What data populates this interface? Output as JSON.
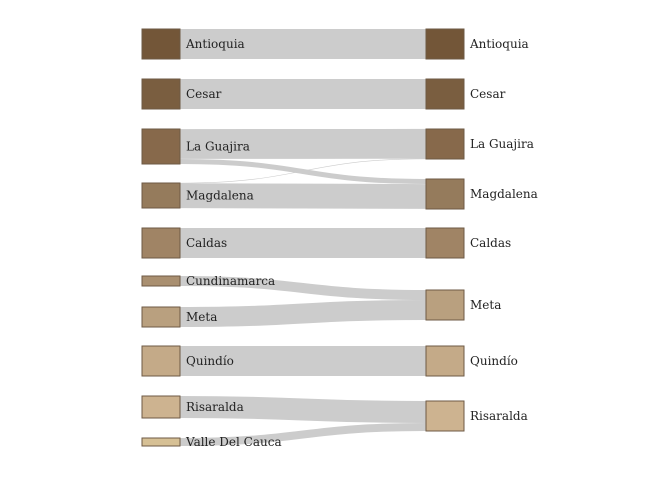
{
  "chart_data": {
    "type": "sankey",
    "title": "",
    "sources": [
      {
        "name": "Antioquia",
        "value": 30,
        "color": "#735638"
      },
      {
        "name": "Cesar",
        "value": 30,
        "color": "#7a5e40"
      },
      {
        "name": "La Guajira",
        "value": 35,
        "color": "#87694b"
      },
      {
        "name": "Magdalena",
        "value": 25,
        "color": "#957b5c"
      },
      {
        "name": "Caldas",
        "value": 30,
        "color": "#a08465"
      },
      {
        "name": "Cundinamarca",
        "value": 10,
        "color": "#a98f70"
      },
      {
        "name": "Meta",
        "value": 20,
        "color": "#b9a07f"
      },
      {
        "name": "Quindío",
        "value": 30,
        "color": "#c4aa88"
      },
      {
        "name": "Risaralda",
        "value": 22,
        "color": "#cdb390"
      },
      {
        "name": "Valle Del Cauca",
        "value": 8,
        "color": "#d6c095"
      }
    ],
    "targets": [
      {
        "name": "Antioquia",
        "value": 30,
        "color": "#735638"
      },
      {
        "name": "Cesar",
        "value": 30,
        "color": "#7a5e40"
      },
      {
        "name": "La Guajira",
        "value": 30,
        "color": "#87694b"
      },
      {
        "name": "Magdalena",
        "value": 30,
        "color": "#957b5c"
      },
      {
        "name": "Caldas",
        "value": 30,
        "color": "#a08465"
      },
      {
        "name": "Meta",
        "value": 30,
        "color": "#b9a07f"
      },
      {
        "name": "Quindío",
        "value": 30,
        "color": "#c4aa88"
      },
      {
        "name": "Risaralda",
        "value": 30,
        "color": "#cdb390"
      }
    ],
    "links": [
      {
        "source": "Antioquia",
        "target": "Antioquia",
        "value": 30
      },
      {
        "source": "Cesar",
        "target": "Cesar",
        "value": 30
      },
      {
        "source": "La Guajira",
        "target": "La Guajira",
        "value": 30
      },
      {
        "source": "La Guajira",
        "target": "Magdalena",
        "value": 5
      },
      {
        "source": "Magdalena",
        "target": "La Guajira",
        "value": 0.3
      },
      {
        "source": "Magdalena",
        "target": "Magdalena",
        "value": 25
      },
      {
        "source": "Caldas",
        "target": "Caldas",
        "value": 30
      },
      {
        "source": "Cundinamarca",
        "target": "Meta",
        "value": 10
      },
      {
        "source": "Meta",
        "target": "Meta",
        "value": 20
      },
      {
        "source": "Quindío",
        "target": "Quindío",
        "value": 30
      },
      {
        "source": "Risaralda",
        "target": "Risaralda",
        "value": 22
      },
      {
        "source": "Valle Del Cauca",
        "target": "Risaralda",
        "value": 8
      }
    ],
    "link_color": "#cccccc"
  }
}
